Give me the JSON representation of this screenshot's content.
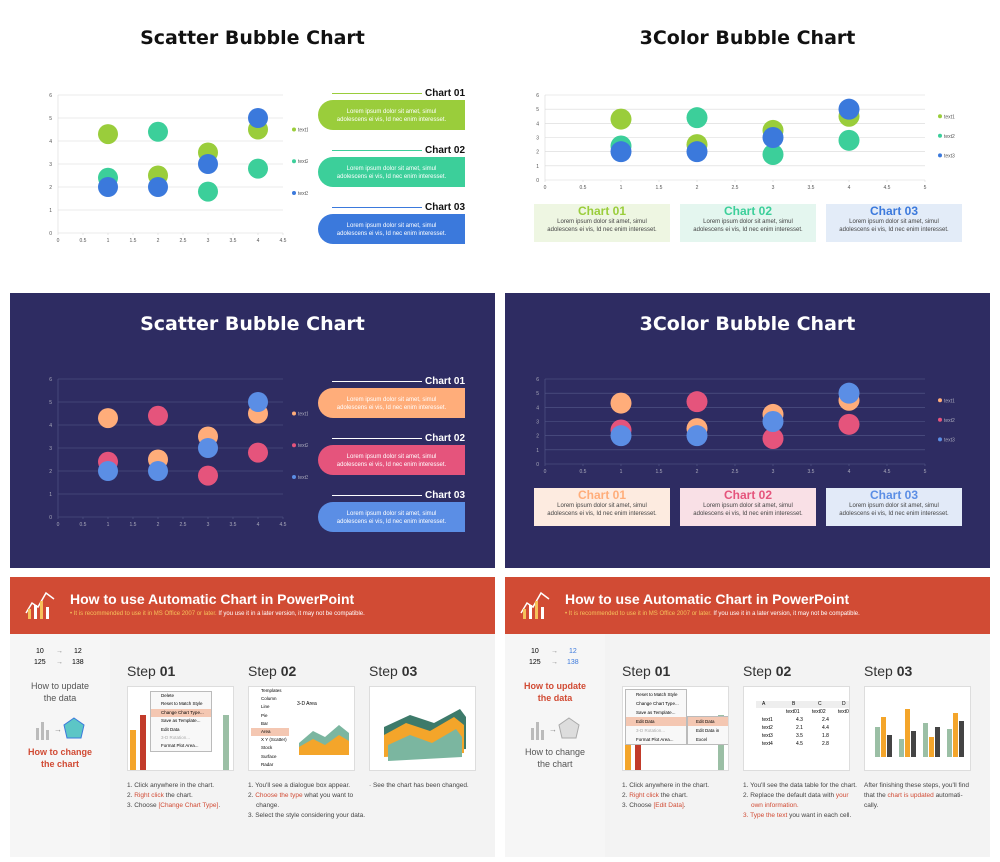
{
  "colors": {
    "green": "#9acd3b",
    "teal": "#3ccf9a",
    "blue": "#3b79dc",
    "peach": "#ffad7a",
    "rose": "#e5547c",
    "lightblue": "#5b8ee5",
    "navy": "#2e2c62",
    "orange_red": "#d14b34"
  },
  "slides": {
    "s1": {
      "title": "Scatter Bubble Chart",
      "panels": [
        {
          "head": "Chart 01",
          "body1": "Lorem ipsum dolor sit amet, simul",
          "body2": "adolescens ei vis, Id nec enim  interesset."
        },
        {
          "head": "Chart 02",
          "body1": "Lorem ipsum dolor sit amet, simul",
          "body2": "adolescens ei vis, Id nec enim  interesset."
        },
        {
          "head": "Chart 03",
          "body1": "Lorem ipsum dolor sit amet, simul",
          "body2": "adolescens ei vis, Id nec enim  interesset."
        }
      ]
    },
    "s2": {
      "title": "3Color Bubble Chart",
      "cards": [
        {
          "head": "Chart 01",
          "body1": "Lorem ipsum dolor sit amet, simul",
          "body2": "adolescens ei vis, Id nec enim  interesset."
        },
        {
          "head": "Chart 02",
          "body1": "Lorem ipsum dolor sit amet, simul",
          "body2": "adolescens ei vis, Id nec enim  interesset."
        },
        {
          "head": "Chart 03",
          "body1": "Lorem ipsum dolor sit amet, simul",
          "body2": "adolescens ei vis, Id nec enim  interesset."
        }
      ]
    },
    "s3": {
      "title": "Scatter Bubble Chart",
      "panels": [
        {
          "head": "Chart 01",
          "body1": "Lorem ipsum dolor sit amet, simul",
          "body2": "adolescens ei vis, Id nec enim  interesset."
        },
        {
          "head": "Chart 02",
          "body1": "Lorem ipsum dolor sit amet, simul",
          "body2": "adolescens ei vis, Id nec enim  interesset."
        },
        {
          "head": "Chart 03",
          "body1": "Lorem ipsum dolor sit amet, simul",
          "body2": "adolescens ei vis, Id nec enim  interesset."
        }
      ]
    },
    "s4": {
      "title": "3Color Bubble Chart",
      "cards": [
        {
          "head": "Chart 01",
          "body1": "Lorem ipsum dolor sit amet, simul",
          "body2": "adolescens ei vis, Id nec enim  interesset."
        },
        {
          "head": "Chart 02",
          "body1": "Lorem ipsum dolor sit amet, simul",
          "body2": "adolescens ei vis, Id nec enim  interesset."
        },
        {
          "head": "Chart 03",
          "body1": "Lorem ipsum dolor sit amet, simul",
          "body2": "adolescens ei vis, Id nec enim  interesset."
        }
      ]
    },
    "howto": {
      "title": "How to use Automatic Chart in PowerPoint",
      "sub_hl": "• It is recommended to use it in MS Office 2007 or later.",
      "sub_rest": " If you use it in a later version, it may not be compatible.",
      "update_label": "How to update the data",
      "change_label": "How to change the chart",
      "mini_nums": [
        "10",
        "12",
        "125",
        "138"
      ],
      "step_word": "Step",
      "step_nums": [
        "01",
        "02",
        "03"
      ],
      "s5_steps": {
        "s1_l1": "1. Click anywhere in the chart.",
        "s1_l2a": "2. ",
        "s1_l2r": "Right click",
        "s1_l2b": " the chart.",
        "s1_l3a": "3. Choose ",
        "s1_l3r": "[Change Chart Type]",
        "s1_l3b": ".",
        "s2_l1": "1. You'll see a dialogue box appear.",
        "s2_l2a": "2. ",
        "s2_l2r": "Choose the type",
        "s2_l2b": " what you want to",
        "s2_l2c": "change.",
        "s2_l3": "3. Select the style considering your data.",
        "s3_l1": "· See the chart has been changed."
      },
      "s6_steps": {
        "s1_l1": "1. Click anywhere in the chart.",
        "s1_l2a": "2. ",
        "s1_l2r": "Right click",
        "s1_l2b": " the chart.",
        "s1_l3a": "3. Choose ",
        "s1_l3r": "[Edit Data]",
        "s1_l3b": ".",
        "s2_l1": "1. You'll see the data table for the chart.",
        "s2_l2a": "2. Replace the default data with ",
        "s2_l2r": "your",
        "s2_l2c": "own information.",
        "s2_l3r": "3. Type the text",
        "s2_l3b": " you want in each cell.",
        "s3_l1": "After finishing these steps, you'll find",
        "s3_l2a": "that the ",
        "s3_l2r": "chart is updated",
        "s3_l2b": " automati-",
        "s3_l2c": "cally."
      },
      "menu5": [
        "Delete",
        "Reset to Match Style",
        "Change Chart Type...",
        "Save as Template...",
        "Edit Data",
        "3-D Rotation...",
        "Format Plot Area..."
      ],
      "menu6": [
        "Reset to Match Style",
        "Change Chart Type...",
        "Save as Template...",
        "Edit Data",
        "3-D Rotation...",
        "Format Plot Area..."
      ],
      "submenu6": [
        "Edit Data",
        "Edit Data in Excel"
      ],
      "dialog_types": [
        "Templates",
        "Column",
        "Line",
        "Pie",
        "Bar",
        "Area",
        "X Y (Scatter)",
        "Stock",
        "Surface",
        "Radar"
      ],
      "dialog_title": "3-D Area",
      "table_cols": [
        "A",
        "B",
        "C",
        "D"
      ],
      "table_header": [
        "text01",
        "text02",
        "text03"
      ],
      "table_rows": [
        [
          "text1",
          "4.3",
          "2.4"
        ],
        [
          "text2",
          "2.1",
          "4.4"
        ],
        [
          "text3",
          "3.5",
          "1.8"
        ],
        [
          "text4",
          "4.5",
          "2.8"
        ]
      ]
    }
  },
  "chart_data": [
    {
      "id": "scatter_bubble_light",
      "type": "scatter",
      "xlim": [
        0,
        4.5
      ],
      "ylim": [
        0,
        6
      ],
      "x_ticks": [
        "0",
        "0.5",
        "1",
        "1.5",
        "2",
        "2.5",
        "3",
        "3.5",
        "4",
        "4.5"
      ],
      "y_ticks": [
        "0",
        "1",
        "2",
        "3",
        "4",
        "5",
        "6"
      ],
      "series": [
        {
          "name": "text1",
          "points": [
            [
              1,
              4.3
            ],
            [
              2,
              2.5
            ],
            [
              3,
              3.5
            ],
            [
              4,
              4.5
            ]
          ]
        },
        {
          "name": "text2",
          "points": [
            [
              1,
              2.4
            ],
            [
              2,
              4.4
            ],
            [
              3,
              1.8
            ],
            [
              4,
              2.8
            ]
          ]
        },
        {
          "name": "text3",
          "points": [
            [
              1,
              2.0
            ],
            [
              2,
              2.0
            ],
            [
              3,
              3.0
            ],
            [
              4,
              5.0
            ]
          ]
        }
      ]
    },
    {
      "id": "three_color_bubble_light",
      "type": "scatter",
      "xlim": [
        0,
        5
      ],
      "ylim": [
        0,
        6
      ],
      "x_ticks": [
        "0",
        "0.5",
        "1",
        "1.5",
        "2",
        "2.5",
        "3",
        "3.5",
        "4",
        "4.5",
        "5"
      ],
      "y_ticks": [
        "0",
        "1",
        "2",
        "3",
        "4",
        "5",
        "6"
      ],
      "series": [
        {
          "name": "text1",
          "points": [
            [
              1,
              4.3
            ],
            [
              2,
              2.5
            ],
            [
              3,
              3.5
            ],
            [
              4,
              4.5
            ]
          ]
        },
        {
          "name": "text2",
          "points": [
            [
              1,
              2.4
            ],
            [
              2,
              4.4
            ],
            [
              3,
              1.8
            ],
            [
              4,
              2.8
            ]
          ]
        },
        {
          "name": "text3",
          "points": [
            [
              1,
              2.0
            ],
            [
              2,
              2.0
            ],
            [
              3,
              3.0
            ],
            [
              4,
              5.0
            ]
          ]
        }
      ]
    },
    {
      "id": "scatter_bubble_dark",
      "type": "scatter",
      "xlim": [
        0,
        4.5
      ],
      "ylim": [
        0,
        6
      ],
      "x_ticks": [
        "0",
        "0.5",
        "1",
        "1.5",
        "2",
        "2.5",
        "3",
        "3.5",
        "4",
        "4.5"
      ],
      "y_ticks": [
        "0",
        "1",
        "2",
        "3",
        "4",
        "5",
        "6"
      ],
      "series": [
        {
          "name": "text1",
          "points": [
            [
              1,
              4.3
            ],
            [
              2,
              2.5
            ],
            [
              3,
              3.5
            ],
            [
              4,
              4.5
            ]
          ]
        },
        {
          "name": "text2",
          "points": [
            [
              1,
              2.4
            ],
            [
              2,
              4.4
            ],
            [
              3,
              1.8
            ],
            [
              4,
              2.8
            ]
          ]
        },
        {
          "name": "text3",
          "points": [
            [
              1,
              2.0
            ],
            [
              2,
              2.0
            ],
            [
              3,
              3.0
            ],
            [
              4,
              5.0
            ]
          ]
        }
      ]
    },
    {
      "id": "three_color_bubble_dark",
      "type": "scatter",
      "xlim": [
        0,
        5
      ],
      "ylim": [
        0,
        6
      ],
      "x_ticks": [
        "0",
        "0.5",
        "1",
        "1.5",
        "2",
        "2.5",
        "3",
        "3.5",
        "4",
        "4.5",
        "5"
      ],
      "y_ticks": [
        "0",
        "1",
        "2",
        "3",
        "4",
        "5",
        "6"
      ],
      "series": [
        {
          "name": "text1",
          "points": [
            [
              1,
              4.3
            ],
            [
              2,
              2.5
            ],
            [
              3,
              3.5
            ],
            [
              4,
              4.5
            ]
          ]
        },
        {
          "name": "text2",
          "points": [
            [
              1,
              2.4
            ],
            [
              2,
              4.4
            ],
            [
              3,
              1.8
            ],
            [
              4,
              2.8
            ]
          ]
        },
        {
          "name": "text3",
          "points": [
            [
              1,
              2.0
            ],
            [
              2,
              2.0
            ],
            [
              3,
              3.0
            ],
            [
              4,
              5.0
            ]
          ]
        }
      ]
    }
  ]
}
